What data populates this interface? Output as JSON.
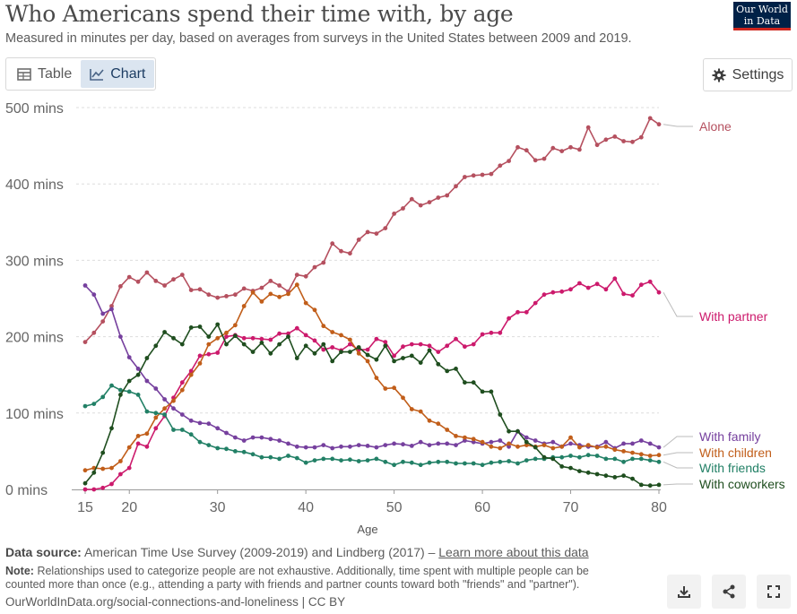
{
  "header": {
    "title": "Who Americans spend their time with, by age",
    "subtitle": "Measured in minutes per day, based on averages from surveys in the United States between 2009 and 2019.",
    "logo_line1": "Our World",
    "logo_line2": "in Data"
  },
  "tabs": [
    {
      "label": "Table",
      "icon": "table-icon",
      "active": false
    },
    {
      "label": "Chart",
      "icon": "line-chart-icon",
      "active": true
    }
  ],
  "settings": {
    "label": "Settings",
    "icon": "gear-icon"
  },
  "chart_data": {
    "type": "line",
    "xlabel": "Age",
    "ylabel": "",
    "ylim": [
      0,
      500
    ],
    "xlim": [
      15,
      80
    ],
    "x_ticks": [
      15,
      20,
      30,
      40,
      50,
      60,
      70,
      80
    ],
    "y_ticks": [
      {
        "value": 0,
        "label": "0 mins"
      },
      {
        "value": 100,
        "label": "100 mins"
      },
      {
        "value": 200,
        "label": "200 mins"
      },
      {
        "value": 300,
        "label": "300 mins"
      },
      {
        "value": 400,
        "label": "400 mins"
      },
      {
        "value": 500,
        "label": "500 mins"
      }
    ],
    "grid": "horizontal dashed",
    "legend": "direct labels at right",
    "x": [
      15,
      16,
      17,
      18,
      19,
      20,
      21,
      22,
      23,
      24,
      25,
      26,
      27,
      28,
      29,
      30,
      31,
      32,
      33,
      34,
      35,
      36,
      37,
      38,
      39,
      40,
      41,
      42,
      43,
      44,
      45,
      46,
      47,
      48,
      49,
      50,
      51,
      52,
      53,
      54,
      55,
      56,
      57,
      58,
      59,
      60,
      61,
      62,
      63,
      64,
      65,
      66,
      67,
      68,
      69,
      70,
      71,
      72,
      73,
      74,
      75,
      76,
      77,
      78,
      79,
      80
    ],
    "series": [
      {
        "name": "Alone",
        "color": "#b5505f",
        "values": [
          193,
          205,
          220,
          240,
          266,
          278,
          272,
          284,
          273,
          267,
          275,
          281,
          261,
          262,
          255,
          251,
          253,
          255,
          263,
          260,
          264,
          273,
          267,
          259,
          281,
          279,
          291,
          297,
          322,
          312,
          309,
          327,
          337,
          335,
          342,
          361,
          368,
          380,
          372,
          376,
          382,
          385,
          397,
          409,
          411,
          412,
          413,
          424,
          430,
          448,
          444,
          431,
          433,
          447,
          443,
          448,
          445,
          474,
          451,
          458,
          462,
          456,
          455,
          461,
          486,
          478
        ]
      },
      {
        "name": "With partner",
        "color": "#cc1a6c",
        "values": [
          0,
          0,
          2,
          7,
          20,
          28,
          60,
          56,
          80,
          96,
          120,
          140,
          155,
          175,
          177,
          179,
          200,
          202,
          198,
          198,
          197,
          196,
          204,
          204,
          211,
          202,
          195,
          183,
          186,
          182,
          190,
          183,
          183,
          197,
          193,
          175,
          187,
          190,
          190,
          188,
          180,
          188,
          197,
          187,
          190,
          203,
          205,
          205,
          224,
          232,
          232,
          244,
          255,
          258,
          259,
          262,
          270,
          264,
          269,
          262,
          276,
          256,
          254,
          268,
          272,
          258
        ]
      },
      {
        "name": "With family",
        "color": "#76409e",
        "values": [
          267,
          255,
          230,
          236,
          200,
          173,
          158,
          142,
          132,
          118,
          106,
          98,
          90,
          87,
          86,
          80,
          74,
          68,
          64,
          68,
          68,
          66,
          64,
          60,
          56,
          55,
          55,
          58,
          54,
          56,
          56,
          58,
          57,
          55,
          58,
          60,
          59,
          57,
          62,
          58,
          60,
          60,
          58,
          64,
          62,
          60,
          62,
          64,
          56,
          76,
          68,
          64,
          60,
          62,
          56,
          60,
          58,
          56,
          56,
          62,
          54,
          60,
          60,
          64,
          60,
          55
        ]
      },
      {
        "name": "With children",
        "color": "#c15e1a",
        "values": [
          25,
          28,
          27,
          28,
          37,
          55,
          70,
          73,
          94,
          106,
          116,
          130,
          150,
          165,
          190,
          198,
          205,
          215,
          240,
          258,
          246,
          256,
          252,
          256,
          268,
          244,
          235,
          214,
          206,
          202,
          196,
          178,
          168,
          146,
          132,
          133,
          120,
          105,
          102,
          90,
          86,
          78,
          70,
          68,
          66,
          62,
          56,
          54,
          60,
          56,
          58,
          56,
          58,
          54,
          56,
          68,
          55,
          58,
          55,
          56,
          52,
          50,
          48,
          46,
          44,
          45
        ]
      },
      {
        "name": "With friends",
        "color": "#228066",
        "values": [
          109,
          112,
          121,
          136,
          130,
          128,
          124,
          102,
          100,
          98,
          78,
          78,
          72,
          62,
          58,
          54,
          53,
          50,
          49,
          46,
          42,
          42,
          40,
          44,
          41,
          35,
          38,
          40,
          40,
          38,
          39,
          37,
          38,
          40,
          36,
          32,
          36,
          35,
          32,
          35,
          36,
          36,
          34,
          34,
          34,
          32,
          35,
          36,
          37,
          34,
          38,
          40,
          40,
          42,
          42,
          44,
          42,
          45,
          44,
          40,
          40,
          36,
          40,
          40,
          38,
          36
        ]
      },
      {
        "name": "With coworkers",
        "color": "#1f4e1f",
        "values": [
          8,
          22,
          48,
          80,
          124,
          142,
          150,
          172,
          188,
          206,
          198,
          190,
          212,
          213,
          200,
          216,
          190,
          201,
          190,
          180,
          192,
          178,
          190,
          200,
          172,
          188,
          178,
          190,
          168,
          180,
          180,
          186,
          176,
          170,
          188,
          168,
          172,
          175,
          166,
          182,
          164,
          155,
          158,
          140,
          140,
          128,
          128,
          98,
          76,
          76,
          62,
          55,
          42,
          40,
          30,
          28,
          24,
          22,
          20,
          18,
          16,
          18,
          14,
          6,
          5,
          6
        ]
      }
    ]
  },
  "footer": {
    "source_label": "Data source:",
    "source_text": "American Time Use Survey (2009-2019) and Lindberg (2017) – ",
    "source_link": "Learn more about this data",
    "note_label": "Note:",
    "note_line1": "Relationships used to categorize people are not exhaustive. Additionally, time spent with multiple people can be",
    "note_line2": "counted more than once (e.g., attending a party with friends and partner counts toward both \"friends\" and \"partner\").",
    "url": "OurWorldInData.org/social-connections-and-loneliness | CC BY"
  },
  "actions": [
    {
      "name": "download-button",
      "icon": "download-icon"
    },
    {
      "name": "share-button",
      "icon": "share-icon"
    },
    {
      "name": "fullscreen-button",
      "icon": "fullscreen-icon"
    }
  ]
}
